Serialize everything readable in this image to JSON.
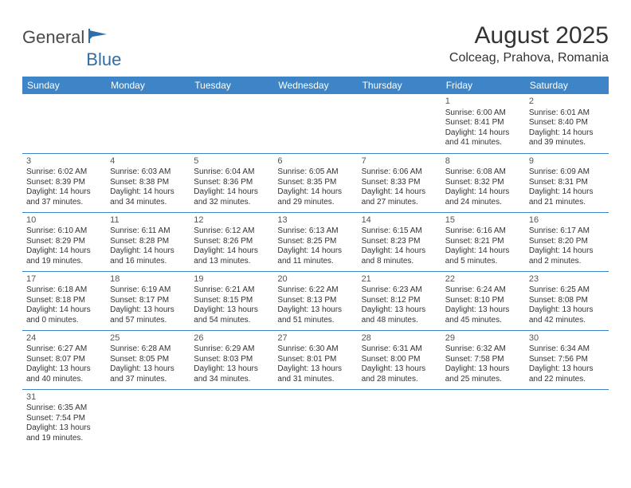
{
  "brand": {
    "word1": "General",
    "word2": "Blue"
  },
  "title": "August 2025",
  "location": "Colceag, Prahova, Romania",
  "colors": {
    "header_bg": "#3d85c6",
    "header_text": "#ffffff",
    "row_divider": "#3d85c6",
    "text": "#333333",
    "brand_gray": "#4a4a4a",
    "brand_blue": "#2f6fa8"
  },
  "day_headers": [
    "Sunday",
    "Monday",
    "Tuesday",
    "Wednesday",
    "Thursday",
    "Friday",
    "Saturday"
  ],
  "weeks": [
    [
      null,
      null,
      null,
      null,
      null,
      {
        "n": "1",
        "sr": "Sunrise: 6:00 AM",
        "ss": "Sunset: 8:41 PM",
        "d1": "Daylight: 14 hours",
        "d2": "and 41 minutes."
      },
      {
        "n": "2",
        "sr": "Sunrise: 6:01 AM",
        "ss": "Sunset: 8:40 PM",
        "d1": "Daylight: 14 hours",
        "d2": "and 39 minutes."
      }
    ],
    [
      {
        "n": "3",
        "sr": "Sunrise: 6:02 AM",
        "ss": "Sunset: 8:39 PM",
        "d1": "Daylight: 14 hours",
        "d2": "and 37 minutes."
      },
      {
        "n": "4",
        "sr": "Sunrise: 6:03 AM",
        "ss": "Sunset: 8:38 PM",
        "d1": "Daylight: 14 hours",
        "d2": "and 34 minutes."
      },
      {
        "n": "5",
        "sr": "Sunrise: 6:04 AM",
        "ss": "Sunset: 8:36 PM",
        "d1": "Daylight: 14 hours",
        "d2": "and 32 minutes."
      },
      {
        "n": "6",
        "sr": "Sunrise: 6:05 AM",
        "ss": "Sunset: 8:35 PM",
        "d1": "Daylight: 14 hours",
        "d2": "and 29 minutes."
      },
      {
        "n": "7",
        "sr": "Sunrise: 6:06 AM",
        "ss": "Sunset: 8:33 PM",
        "d1": "Daylight: 14 hours",
        "d2": "and 27 minutes."
      },
      {
        "n": "8",
        "sr": "Sunrise: 6:08 AM",
        "ss": "Sunset: 8:32 PM",
        "d1": "Daylight: 14 hours",
        "d2": "and 24 minutes."
      },
      {
        "n": "9",
        "sr": "Sunrise: 6:09 AM",
        "ss": "Sunset: 8:31 PM",
        "d1": "Daylight: 14 hours",
        "d2": "and 21 minutes."
      }
    ],
    [
      {
        "n": "10",
        "sr": "Sunrise: 6:10 AM",
        "ss": "Sunset: 8:29 PM",
        "d1": "Daylight: 14 hours",
        "d2": "and 19 minutes."
      },
      {
        "n": "11",
        "sr": "Sunrise: 6:11 AM",
        "ss": "Sunset: 8:28 PM",
        "d1": "Daylight: 14 hours",
        "d2": "and 16 minutes."
      },
      {
        "n": "12",
        "sr": "Sunrise: 6:12 AM",
        "ss": "Sunset: 8:26 PM",
        "d1": "Daylight: 14 hours",
        "d2": "and 13 minutes."
      },
      {
        "n": "13",
        "sr": "Sunrise: 6:13 AM",
        "ss": "Sunset: 8:25 PM",
        "d1": "Daylight: 14 hours",
        "d2": "and 11 minutes."
      },
      {
        "n": "14",
        "sr": "Sunrise: 6:15 AM",
        "ss": "Sunset: 8:23 PM",
        "d1": "Daylight: 14 hours",
        "d2": "and 8 minutes."
      },
      {
        "n": "15",
        "sr": "Sunrise: 6:16 AM",
        "ss": "Sunset: 8:21 PM",
        "d1": "Daylight: 14 hours",
        "d2": "and 5 minutes."
      },
      {
        "n": "16",
        "sr": "Sunrise: 6:17 AM",
        "ss": "Sunset: 8:20 PM",
        "d1": "Daylight: 14 hours",
        "d2": "and 2 minutes."
      }
    ],
    [
      {
        "n": "17",
        "sr": "Sunrise: 6:18 AM",
        "ss": "Sunset: 8:18 PM",
        "d1": "Daylight: 14 hours",
        "d2": "and 0 minutes."
      },
      {
        "n": "18",
        "sr": "Sunrise: 6:19 AM",
        "ss": "Sunset: 8:17 PM",
        "d1": "Daylight: 13 hours",
        "d2": "and 57 minutes."
      },
      {
        "n": "19",
        "sr": "Sunrise: 6:21 AM",
        "ss": "Sunset: 8:15 PM",
        "d1": "Daylight: 13 hours",
        "d2": "and 54 minutes."
      },
      {
        "n": "20",
        "sr": "Sunrise: 6:22 AM",
        "ss": "Sunset: 8:13 PM",
        "d1": "Daylight: 13 hours",
        "d2": "and 51 minutes."
      },
      {
        "n": "21",
        "sr": "Sunrise: 6:23 AM",
        "ss": "Sunset: 8:12 PM",
        "d1": "Daylight: 13 hours",
        "d2": "and 48 minutes."
      },
      {
        "n": "22",
        "sr": "Sunrise: 6:24 AM",
        "ss": "Sunset: 8:10 PM",
        "d1": "Daylight: 13 hours",
        "d2": "and 45 minutes."
      },
      {
        "n": "23",
        "sr": "Sunrise: 6:25 AM",
        "ss": "Sunset: 8:08 PM",
        "d1": "Daylight: 13 hours",
        "d2": "and 42 minutes."
      }
    ],
    [
      {
        "n": "24",
        "sr": "Sunrise: 6:27 AM",
        "ss": "Sunset: 8:07 PM",
        "d1": "Daylight: 13 hours",
        "d2": "and 40 minutes."
      },
      {
        "n": "25",
        "sr": "Sunrise: 6:28 AM",
        "ss": "Sunset: 8:05 PM",
        "d1": "Daylight: 13 hours",
        "d2": "and 37 minutes."
      },
      {
        "n": "26",
        "sr": "Sunrise: 6:29 AM",
        "ss": "Sunset: 8:03 PM",
        "d1": "Daylight: 13 hours",
        "d2": "and 34 minutes."
      },
      {
        "n": "27",
        "sr": "Sunrise: 6:30 AM",
        "ss": "Sunset: 8:01 PM",
        "d1": "Daylight: 13 hours",
        "d2": "and 31 minutes."
      },
      {
        "n": "28",
        "sr": "Sunrise: 6:31 AM",
        "ss": "Sunset: 8:00 PM",
        "d1": "Daylight: 13 hours",
        "d2": "and 28 minutes."
      },
      {
        "n": "29",
        "sr": "Sunrise: 6:32 AM",
        "ss": "Sunset: 7:58 PM",
        "d1": "Daylight: 13 hours",
        "d2": "and 25 minutes."
      },
      {
        "n": "30",
        "sr": "Sunrise: 6:34 AM",
        "ss": "Sunset: 7:56 PM",
        "d1": "Daylight: 13 hours",
        "d2": "and 22 minutes."
      }
    ],
    [
      {
        "n": "31",
        "sr": "Sunrise: 6:35 AM",
        "ss": "Sunset: 7:54 PM",
        "d1": "Daylight: 13 hours",
        "d2": "and 19 minutes."
      },
      null,
      null,
      null,
      null,
      null,
      null
    ]
  ]
}
